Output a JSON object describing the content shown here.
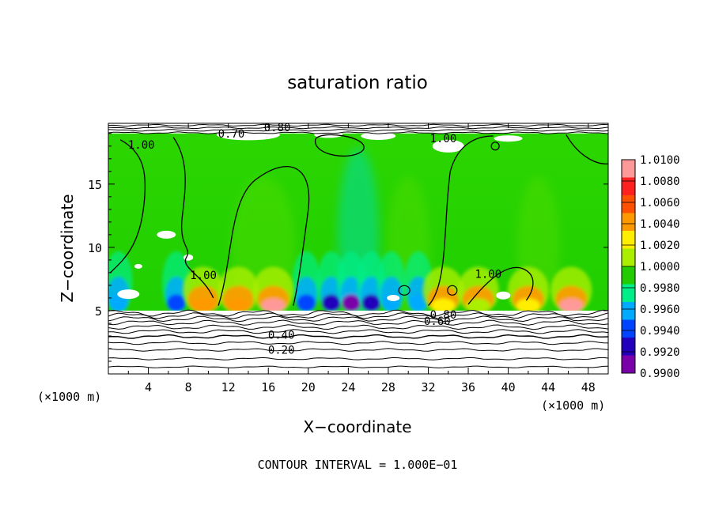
{
  "chart_data": {
    "type": "heatmap",
    "title": "saturation ratio",
    "xlabel": "X−coordinate",
    "ylabel": "Z−coordinate",
    "x_unit_left": "(×1000 m)",
    "x_unit_right": "(×1000 m)",
    "xlim": [
      0,
      50
    ],
    "ylim": [
      0,
      19.8
    ],
    "x_ticks": [
      4,
      8,
      12,
      16,
      20,
      24,
      28,
      32,
      36,
      40,
      44,
      48
    ],
    "x_tick_labels": [
      "4",
      "8",
      "12",
      "16",
      "20",
      "24",
      "28",
      "32",
      "36",
      "40",
      "44",
      "48"
    ],
    "y_ticks": [
      5,
      10,
      15
    ],
    "y_tick_labels": [
      "5",
      "10",
      "15"
    ],
    "footer": "CONTOUR INTERVAL = 1.000E−01",
    "colorbar": {
      "levels": [
        "1.0100",
        "1.0080",
        "1.0060",
        "1.0040",
        "1.0020",
        "1.0000",
        "0.9980",
        "0.9960",
        "0.9940",
        "0.9920",
        "0.9900"
      ],
      "colors": [
        "#ff9999",
        "#ff2020",
        "#ff5000",
        "#ff9900",
        "#ffee00",
        "#aaee00",
        "#22cc00",
        "#00ee88",
        "#00aaff",
        "#0044ff",
        "#2200bb",
        "#7a00aa"
      ]
    },
    "contour_labels": [
      {
        "text": "0.80",
        "x": 16.9,
        "y": 19.5
      },
      {
        "text": "0.70",
        "x": 12.3,
        "y": 19.0
      },
      {
        "text": "1.00",
        "x": 3.3,
        "y": 18.1
      },
      {
        "text": "1.00",
        "x": 33.5,
        "y": 18.6
      },
      {
        "text": "0.80",
        "x": 33.5,
        "y": 4.7
      },
      {
        "text": "0.60",
        "x": 32.9,
        "y": 4.2
      },
      {
        "text": "0.40",
        "x": 17.3,
        "y": 3.1
      },
      {
        "text": "0.20",
        "x": 17.3,
        "y": 1.9
      },
      {
        "text": "1.00",
        "x": 9.5,
        "y": 7.8
      },
      {
        "text": "1.00",
        "x": 38.0,
        "y": 7.9
      }
    ],
    "fields": {
      "stable_layer_top_km": 5.0,
      "tropopause_km": 19.0,
      "background_value": 1.0,
      "warm_cores": [
        {
          "x": 9.5,
          "value": 1.006
        },
        {
          "x": 13.0,
          "value": 1.006
        },
        {
          "x": 16.5,
          "value": 1.01
        },
        {
          "x": 33.5,
          "value": 1.004
        },
        {
          "x": 37.0,
          "value": 1.002
        },
        {
          "x": 42.0,
          "value": 1.004
        },
        {
          "x": 46.3,
          "value": 1.01
        }
      ],
      "cool_cores": [
        {
          "x": 1.0,
          "value": 0.996
        },
        {
          "x": 6.8,
          "value": 0.994
        },
        {
          "x": 19.8,
          "value": 0.993
        },
        {
          "x": 22.3,
          "value": 0.992
        },
        {
          "x": 24.3,
          "value": 0.99
        },
        {
          "x": 26.3,
          "value": 0.992
        },
        {
          "x": 28.3,
          "value": 0.996
        },
        {
          "x": 31.0,
          "value": 0.996
        }
      ]
    }
  }
}
